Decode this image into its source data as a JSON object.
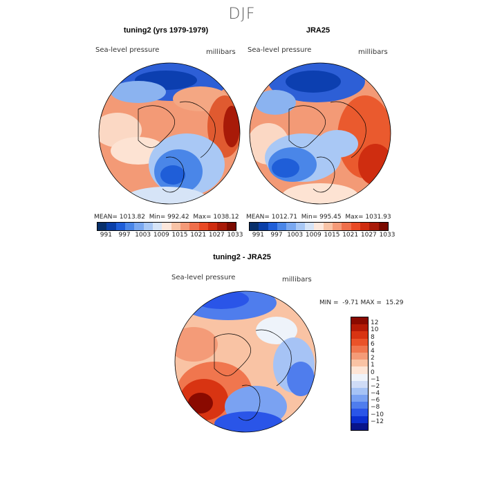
{
  "figure": {
    "season": "DJF",
    "panels": [
      {
        "title": "tuning2 (yrs 1979-1979)",
        "variable": "Sea-level pressure",
        "units": "millibars",
        "stats": {
          "mean_label": "MEAN=",
          "mean": "1013.82",
          "min_label": "Min=",
          "min": "992.42",
          "max_label": "Max=",
          "max": "1038.12"
        }
      },
      {
        "title": "JRA25",
        "variable": "Sea-level pressure",
        "units": "millibars",
        "stats": {
          "mean_label": "MEAN=",
          "mean": "1012.71",
          "min_label": "Min=",
          "min": "995.45",
          "max_label": "Max=",
          "max": "1031.93"
        }
      },
      {
        "title": "tuning2 - JRA25",
        "variable": "Sea-level pressure",
        "units": "millibars",
        "stats": {
          "min_label": "MIN =",
          "min": "-9.71",
          "max_label": "MAX =",
          "max": "15.29"
        }
      }
    ],
    "abs_colorbar": {
      "colors": [
        "#08306b",
        "#0a3fa8",
        "#1f5ed8",
        "#4a86e8",
        "#7aa8f0",
        "#a9c8f5",
        "#d6e4f7",
        "#fce7dc",
        "#f8c3a6",
        "#f49a78",
        "#ef6f4b",
        "#e94a25",
        "#cf2d10",
        "#a81a08",
        "#7a0a00"
      ],
      "labels": [
        "991",
        "997",
        "1003",
        "1009",
        "1015",
        "1021",
        "1027",
        "1033"
      ]
    },
    "diff_colorbar": {
      "colors": [
        "#08148a",
        "#0b2fd0",
        "#2a55e8",
        "#4f7ded",
        "#7aa2f2",
        "#a6c3f5",
        "#cfdcf6",
        "#eef3fa",
        "#fde5d6",
        "#f9c3a4",
        "#f49b78",
        "#f0764e",
        "#ea5329",
        "#d83412",
        "#b41a06",
        "#8a0a00"
      ],
      "labels": [
        "12",
        "10",
        "8",
        "6",
        "4",
        "2",
        "1",
        "0",
        "−1",
        "−2",
        "−4",
        "−6",
        "−8",
        "−10",
        "−12"
      ]
    }
  }
}
